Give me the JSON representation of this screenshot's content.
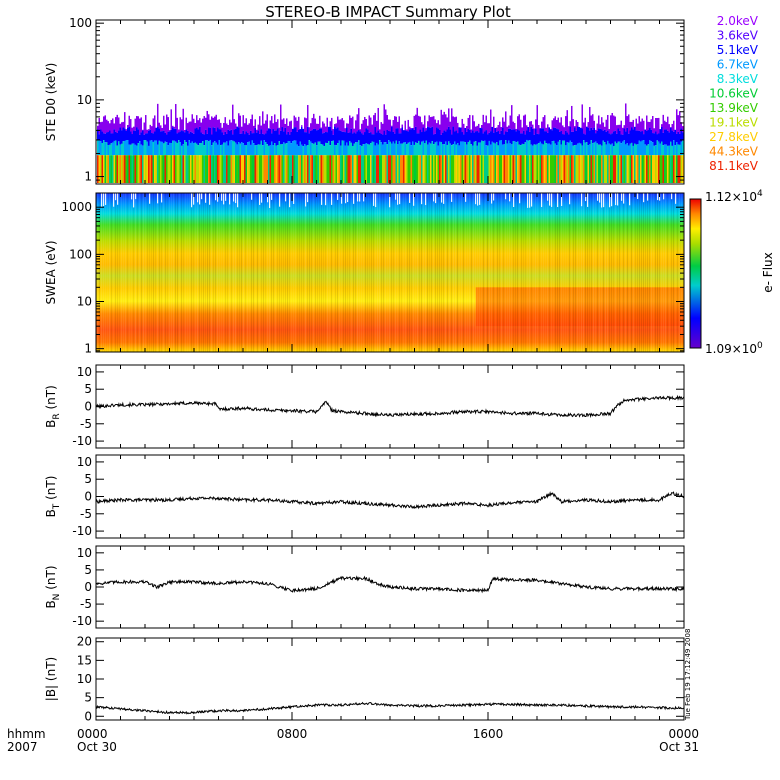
{
  "title": "STEREO-B IMPACT Summary Plot",
  "stamp": "Tue Feb 19 17:12:49 2008",
  "time_axis": {
    "row1_label": "hhmm",
    "row2_label": "2007",
    "range_hours": [
      0,
      24
    ],
    "ticks": [
      {
        "hour": 0,
        "label": "0000",
        "date": "Oct 30"
      },
      {
        "hour": 8,
        "label": "0800",
        "date": ""
      },
      {
        "hour": 16,
        "label": "1600",
        "date": ""
      },
      {
        "hour": 24,
        "label": "0000",
        "date": "Oct 31"
      }
    ]
  },
  "chart_data": [
    {
      "type": "line",
      "panel": "ste",
      "ylabel": "STE D0 (keV)",
      "scale": "log",
      "ylim": [
        0.8,
        110
      ],
      "yticks": [
        {
          "value": 1,
          "label": "1"
        },
        {
          "value": 10,
          "label": "10"
        },
        {
          "value": 100,
          "label": "100"
        }
      ],
      "channels": [
        {
          "name": "2.0keV",
          "color": "#9900ff"
        },
        {
          "name": "3.6keV",
          "color": "#5500ff"
        },
        {
          "name": "5.1keV",
          "color": "#0000ff"
        },
        {
          "name": "6.7keV",
          "color": "#0099ff"
        },
        {
          "name": "8.3keV",
          "color": "#00dddd"
        },
        {
          "name": "10.6keV",
          "color": "#00cc33"
        },
        {
          "name": "13.9keV",
          "color": "#33cc00"
        },
        {
          "name": "19.1keV",
          "color": "#bbdd00"
        },
        {
          "name": "27.8keV",
          "color": "#ffcc00"
        },
        {
          "name": "44.3keV",
          "color": "#ff8800"
        },
        {
          "name": "81.1keV",
          "color": "#ee2200"
        }
      ],
      "levels": {
        "violet_top": [
          4,
          9
        ],
        "blue": 4,
        "cyan": 2.5,
        "green": 1.9
      }
    },
    {
      "type": "heatmap",
      "panel": "swea",
      "ylabel": "SWEA (eV)",
      "scale": "log",
      "ylim": [
        0.85,
        2000
      ],
      "yticks": [
        {
          "value": 1,
          "label": "1"
        },
        {
          "value": 10,
          "label": "10"
        },
        {
          "value": 100,
          "label": "100"
        },
        {
          "value": 1000,
          "label": "1000"
        }
      ],
      "colorbar": {
        "label": "e- Flux",
        "max_mant": "1.12",
        "max_exp": "4",
        "min_mant": "1.09",
        "min_exp": "0"
      }
    },
    {
      "type": "line",
      "panel": "br",
      "ylabel_main": "B",
      "ylabel_sub": "R",
      "ylabel_unit": "(nT)",
      "ylim": [
        -12,
        12
      ],
      "yticks": [
        {
          "value": 10,
          "label": "10"
        },
        {
          "value": 5,
          "label": "5"
        },
        {
          "value": 0,
          "label": "0"
        },
        {
          "value": -5,
          "label": "-5"
        },
        {
          "value": -10,
          "label": "-10"
        }
      ],
      "x": [
        0,
        1,
        2,
        3,
        4,
        4.9,
        5,
        6,
        7,
        8,
        9,
        9.4,
        9.6,
        10,
        11,
        12,
        13,
        14,
        15,
        16,
        17,
        18,
        19,
        20,
        21,
        21.3,
        21.6,
        22,
        23,
        24
      ],
      "y": [
        0,
        0.5,
        0.5,
        0.8,
        1,
        0.8,
        -0.8,
        -0.5,
        -1,
        -1.2,
        -1.5,
        1.5,
        -1,
        -1.5,
        -2,
        -2.5,
        -2.2,
        -2,
        -1.5,
        -1.5,
        -2,
        -2,
        -2.5,
        -2.5,
        -2,
        0.5,
        2,
        2,
        2.5,
        2.5
      ]
    },
    {
      "type": "line",
      "panel": "bt",
      "ylabel_main": "B",
      "ylabel_sub": "T",
      "ylabel_unit": "(nT)",
      "ylim": [
        -12,
        12
      ],
      "yticks": [
        {
          "value": 10,
          "label": "10"
        },
        {
          "value": 5,
          "label": "5"
        },
        {
          "value": 0,
          "label": "0"
        },
        {
          "value": -5,
          "label": "-5"
        },
        {
          "value": -10,
          "label": "-10"
        }
      ],
      "x": [
        0,
        1,
        2,
        3,
        4,
        5,
        6,
        7,
        8,
        9,
        10,
        11,
        12,
        13,
        14,
        15,
        16,
        17,
        18,
        18.6,
        19,
        20,
        21,
        22,
        23,
        23.5,
        24
      ],
      "y": [
        -1.5,
        -1,
        -1,
        -1,
        -0.5,
        -0.5,
        -1,
        -1,
        -1.5,
        -2,
        -1.5,
        -2,
        -2.5,
        -3,
        -2.5,
        -2,
        -2.5,
        -1.8,
        -1.5,
        1,
        -1.5,
        -1,
        -1.5,
        -1,
        -1,
        1,
        0
      ]
    },
    {
      "type": "line",
      "panel": "bn",
      "ylabel_main": "B",
      "ylabel_sub": "N",
      "ylabel_unit": "(nT)",
      "ylim": [
        -12,
        12
      ],
      "yticks": [
        {
          "value": 10,
          "label": "10"
        },
        {
          "value": 5,
          "label": "5"
        },
        {
          "value": 0,
          "label": "0"
        },
        {
          "value": -5,
          "label": "-5"
        },
        {
          "value": -10,
          "label": "-10"
        }
      ],
      "x": [
        0,
        1,
        2,
        2.5,
        3,
        4,
        5,
        6,
        7,
        7.5,
        8,
        9,
        9.5,
        10,
        11,
        11.5,
        12,
        13,
        14,
        15,
        16,
        16.2,
        17,
        18,
        19,
        20,
        21,
        22,
        23,
        24
      ],
      "y": [
        1,
        1.5,
        1.5,
        0,
        1.5,
        1.5,
        1,
        1.5,
        1,
        0,
        -1,
        -0.5,
        1,
        2.5,
        2.5,
        1,
        0,
        -0.5,
        -0.5,
        -1,
        -1,
        2.5,
        2,
        2,
        1,
        0,
        -0.5,
        -0.5,
        -0.5,
        -0.5
      ]
    },
    {
      "type": "line",
      "panel": "bmag",
      "ylabel_main": "|B|",
      "ylabel_sub": "",
      "ylabel_unit": "(nT)",
      "ylim": [
        -1,
        21
      ],
      "yticks": [
        {
          "value": 20,
          "label": "20"
        },
        {
          "value": 15,
          "label": "15"
        },
        {
          "value": 10,
          "label": "10"
        },
        {
          "value": 5,
          "label": "5"
        },
        {
          "value": 0,
          "label": "0"
        }
      ],
      "x": [
        0,
        1,
        2,
        3,
        4,
        5,
        6,
        7,
        8,
        9,
        10,
        11,
        12,
        13,
        14,
        15,
        16,
        17,
        18,
        19,
        20,
        21,
        22,
        23,
        24
      ],
      "y": [
        2.5,
        2,
        1.5,
        1,
        1,
        1.5,
        1.5,
        2,
        2.5,
        3,
        3,
        3.5,
        3,
        2.8,
        2.8,
        3,
        3.2,
        3.2,
        3,
        3,
        2.8,
        2.5,
        2.5,
        2.3,
        2.2
      ]
    }
  ]
}
